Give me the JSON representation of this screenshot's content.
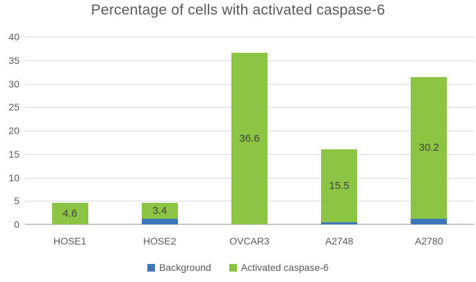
{
  "chart_data": {
    "type": "bar",
    "stacked": true,
    "title": "Percentage of cells with activated caspase-6",
    "categories": [
      "HOSE1",
      "HOSE2",
      "OVCAR3",
      "A2748",
      "A2780"
    ],
    "series": [
      {
        "name": "Background",
        "color": "#3e76bc",
        "values": [
          0,
          1.2,
          0,
          0.5,
          1.2
        ],
        "labels": [
          "",
          "",
          "",
          "",
          ""
        ]
      },
      {
        "name": "Activated caspase-6",
        "color": "#8cc544",
        "values": [
          4.6,
          3.4,
          36.6,
          15.5,
          30.2
        ],
        "labels": [
          "4.6",
          "3.4",
          "36.6",
          "15.5",
          "30.2"
        ]
      }
    ],
    "ylim": [
      0,
      40
    ],
    "yticks": [
      0,
      5,
      10,
      15,
      20,
      25,
      30,
      35,
      40
    ],
    "xlabel": "",
    "ylabel": "",
    "grid": true,
    "legend_position": "bottom",
    "colors": {
      "gridline": "#d9d9d9",
      "axis_line": "#c6c6c6",
      "tick_text": "#595959",
      "title_text": "#595959",
      "data_label_text": "#3f3f3f",
      "background": "#ffffff"
    }
  }
}
